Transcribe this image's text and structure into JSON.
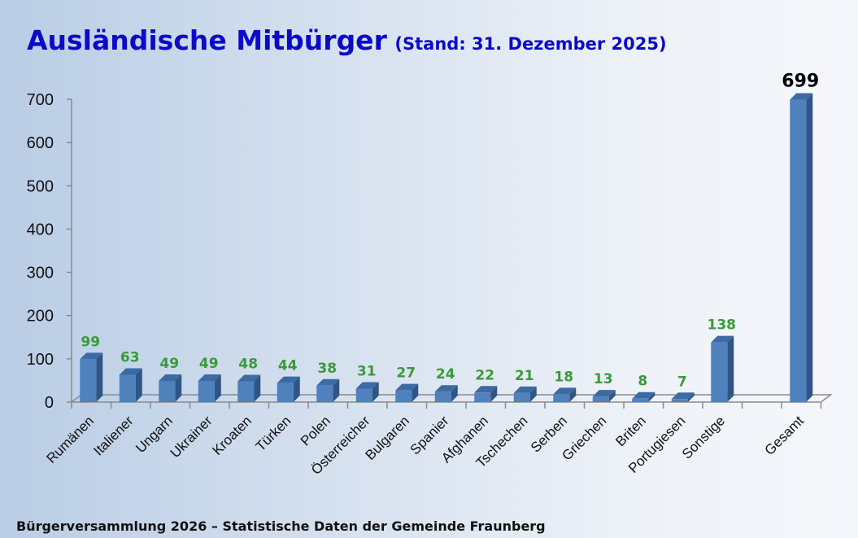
{
  "title": {
    "main": "Ausländische Mitbürger",
    "subtitle": "(Stand: 31. Dezember 2025)"
  },
  "footer": "Bürgerversammlung 2026 – Statistische Daten der Gemeinde Fraunberg",
  "chart_data": {
    "type": "bar",
    "title": "Ausländische Mitbürger (Stand: 31. Dezember 2025)",
    "xlabel": "",
    "ylabel": "",
    "ylim": [
      0,
      700
    ],
    "yticks": [
      0,
      100,
      200,
      300,
      400,
      500,
      600,
      700
    ],
    "categories": [
      "Rumänen",
      "Italiener",
      "Ungarn",
      "Ukrainer",
      "Kroaten",
      "Türken",
      "Polen",
      "Österreicher",
      "Bulgaren",
      "Spanier",
      "Afghanen",
      "Tschechen",
      "Serben",
      "Griechen",
      "Briten",
      "Portugiesen",
      "Sonstige",
      "Gesamt"
    ],
    "values": [
      99,
      63,
      49,
      49,
      48,
      44,
      38,
      31,
      27,
      24,
      22,
      21,
      18,
      13,
      8,
      7,
      138,
      699
    ],
    "colors": {
      "bar": "#4f81bd",
      "bar_side": "#2f5587",
      "bar_top": "#3d6aa3",
      "label": "#3a9a3a",
      "total_label": "#000000",
      "title": "#0a0ac8"
    },
    "grid": false,
    "legend": "none"
  }
}
